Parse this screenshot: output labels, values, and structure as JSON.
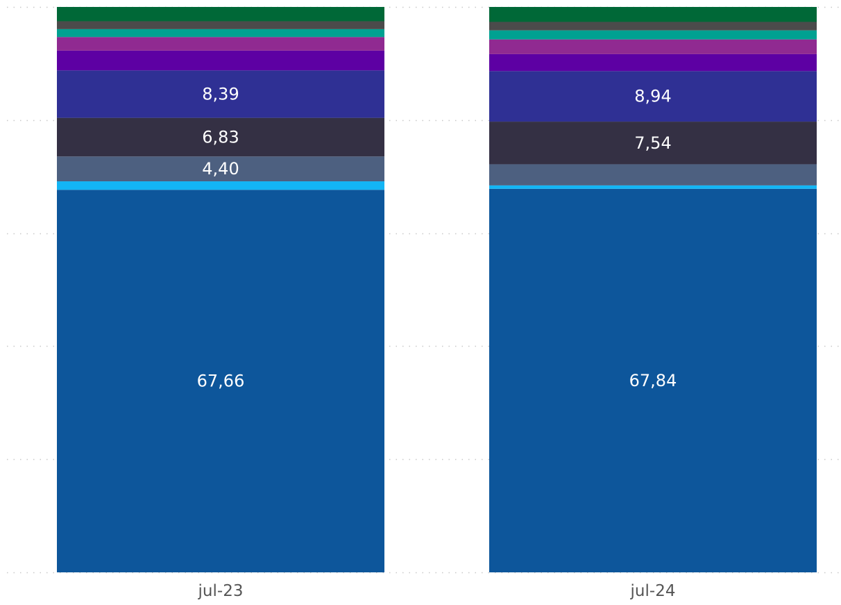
{
  "chart_data": {
    "type": "bar",
    "stacked": true,
    "normalized_percent": true,
    "categories": [
      "jul-23",
      "jul-24"
    ],
    "ylim": [
      0,
      100
    ],
    "grid": true,
    "gridline_style": "dotted",
    "legend": "none",
    "title": "",
    "xlabel": "",
    "ylabel": "",
    "series": [
      {
        "color": "#0D569B",
        "values": [
          67.66,
          67.84
        ],
        "labels": [
          "67,66",
          "67,84"
        ]
      },
      {
        "color": "#13B5F5",
        "values": [
          1.5,
          0.6
        ],
        "labels": [
          "",
          ""
        ]
      },
      {
        "color": "#4D6080",
        "values": [
          4.4,
          3.74
        ],
        "labels": [
          "4,40",
          ""
        ]
      },
      {
        "color": "#343044",
        "values": [
          6.83,
          7.54
        ],
        "labels": [
          "6,83",
          "7,54"
        ]
      },
      {
        "color": "#2F3094",
        "values": [
          8.39,
          8.94
        ],
        "labels": [
          "8,39",
          "8,94"
        ]
      },
      {
        "color": "#5D00A3",
        "values": [
          3.5,
          3.0
        ],
        "labels": [
          "",
          ""
        ]
      },
      {
        "color": "#902A91",
        "values": [
          2.4,
          2.6
        ],
        "labels": [
          "",
          ""
        ]
      },
      {
        "color": "#00A191",
        "values": [
          1.4,
          1.6
        ],
        "labels": [
          "",
          ""
        ]
      },
      {
        "color": "#4B4B4B",
        "values": [
          1.4,
          1.5
        ],
        "labels": [
          "",
          ""
        ]
      },
      {
        "color": "#006837",
        "values": [
          2.52,
          2.64
        ],
        "labels": [
          "",
          ""
        ]
      }
    ]
  }
}
